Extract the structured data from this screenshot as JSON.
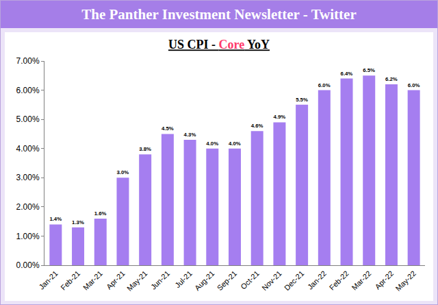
{
  "header": "The Panther Investment Newsletter - Twitter",
  "chart_data": {
    "type": "bar",
    "title": "US CPI - Core YoY",
    "categories": [
      "Jan-21",
      "Feb-21",
      "Mar-21",
      "Apr-21",
      "May-21",
      "Jun-21",
      "Jul-21",
      "Aug-21",
      "Sep-21",
      "Oct-21",
      "Nov-21",
      "Dec-21",
      "Jan-22",
      "Feb-22",
      "Mar-22",
      "Apr-22",
      "May-22"
    ],
    "values": [
      1.4,
      1.3,
      1.6,
      3.0,
      3.8,
      4.5,
      4.3,
      4.0,
      4.0,
      4.6,
      4.9,
      5.5,
      6.0,
      6.4,
      6.5,
      6.2,
      6.0
    ],
    "value_labels": [
      "1.4%",
      "1.3%",
      "1.6%",
      "3.0%",
      "3.8%",
      "4.5%",
      "4.3%",
      "4.0%",
      "4.0%",
      "4.6%",
      "4.9%",
      "5.5%",
      "6.0%",
      "6.4%",
      "6.5%",
      "6.2%",
      "6.0%"
    ],
    "color": "#a57ef0",
    "ylim": [
      0,
      7
    ],
    "yticks": [
      {
        "value": 0,
        "label": "0.00%"
      },
      {
        "value": 1,
        "label": "1.00%"
      },
      {
        "value": 2,
        "label": "2.00%"
      },
      {
        "value": 3,
        "label": "3.00%"
      },
      {
        "value": 4,
        "label": "4.00%"
      },
      {
        "value": 5,
        "label": "5.00%"
      },
      {
        "value": 6,
        "label": "6.00%"
      },
      {
        "value": 7,
        "label": "7.00%"
      }
    ],
    "grid": false,
    "data_labels": true
  }
}
